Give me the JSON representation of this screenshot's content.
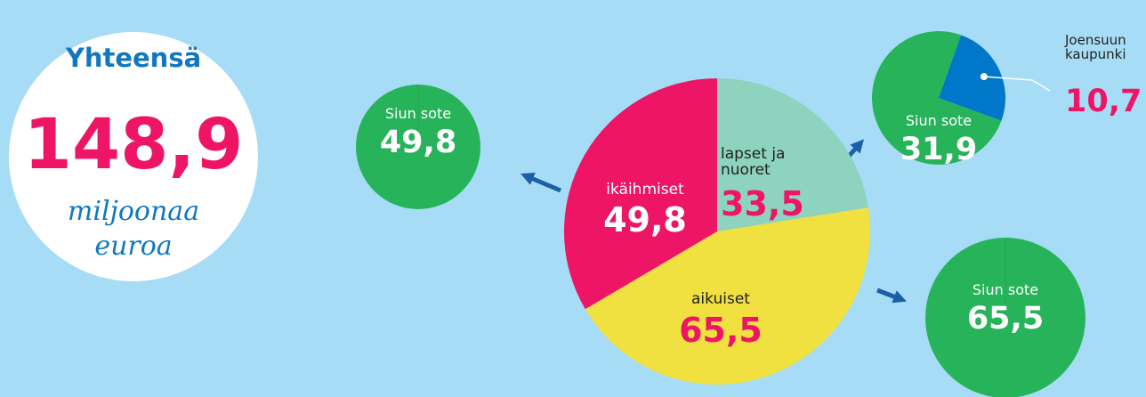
{
  "total": {
    "title": "Yhteensä",
    "value": 148.9,
    "value_label": "148,9",
    "unit": "miljoonaa euroa"
  },
  "chart_data": [
    {
      "type": "pie",
      "categories": [
        "lapset ja nuoret",
        "aikuiset",
        "ikäihmiset"
      ],
      "values": [
        33.5,
        65.5,
        49.8
      ],
      "value_labels": [
        "33,5",
        "65,5",
        "49,8"
      ],
      "colors": [
        "#8dd3bd",
        "#f0e040",
        "#ee1566"
      ]
    },
    {
      "type": "pie",
      "categories": [
        "Siun sote"
      ],
      "values": [
        49.8
      ],
      "value_labels": [
        "49,8"
      ],
      "colors": [
        "#27b35a"
      ]
    },
    {
      "type": "pie",
      "categories": [
        "Siun sote",
        "Joensuun kaupunki"
      ],
      "values": [
        31.9,
        10.7
      ],
      "value_labels": [
        "31,9",
        "10,7"
      ],
      "colors": [
        "#27b35a",
        "#0077c8"
      ]
    },
    {
      "type": "pie",
      "categories": [
        "Siun sote"
      ],
      "values": [
        65.5
      ],
      "value_labels": [
        "65,5"
      ],
      "colors": [
        "#27b35a"
      ]
    }
  ]
}
